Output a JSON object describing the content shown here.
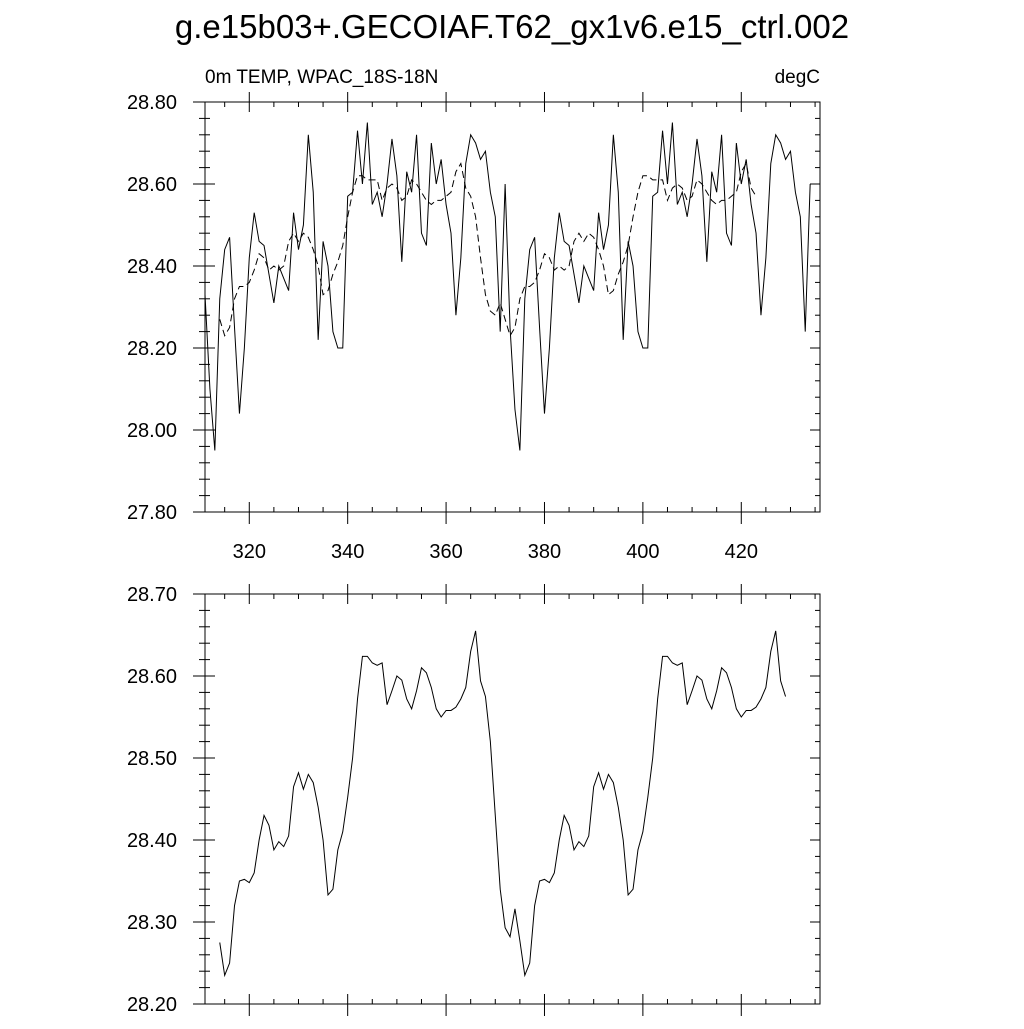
{
  "title": "g.e15b03+.GECOIAF.T62_gx1v6.e15_ctrl.002",
  "chart_data": [
    {
      "type": "line",
      "left_label": "0m TEMP, WPAC_18S-18N",
      "right_label": "degC",
      "xlim": [
        311,
        436
      ],
      "ylim": [
        27.8,
        28.8
      ],
      "x_ticks": [
        320,
        340,
        360,
        380,
        400,
        420
      ],
      "y_ticks": [
        27.8,
        28.0,
        28.2,
        28.4,
        28.6,
        28.8
      ],
      "y_tick_labels": [
        "27.80",
        "28.00",
        "28.20",
        "28.40",
        "28.60",
        "28.80"
      ],
      "x_start": 311,
      "x_step": 1,
      "series": [
        {
          "style": "solid",
          "values": [
            28.33,
            28.1,
            27.95,
            28.32,
            28.44,
            28.47,
            28.25,
            28.04,
            28.2,
            28.42,
            28.53,
            28.46,
            28.45,
            28.38,
            28.31,
            28.4,
            28.37,
            28.34,
            28.53,
            28.44,
            28.5,
            28.72,
            28.58,
            28.22,
            28.46,
            28.4,
            28.24,
            28.2,
            28.2,
            28.57,
            28.58,
            28.73,
            28.6,
            28.75,
            28.55,
            28.58,
            28.52,
            28.6,
            28.71,
            28.62,
            28.41,
            28.63,
            28.58,
            28.72,
            28.48,
            28.45,
            28.7,
            28.6,
            28.66,
            28.55,
            28.48,
            28.28,
            28.42,
            28.65,
            28.72,
            28.7,
            28.66,
            28.68,
            28.58,
            28.52,
            28.24,
            28.6,
            28.25,
            28.05,
            27.95,
            28.32,
            28.44,
            28.47,
            28.25,
            28.04,
            28.2,
            28.42,
            28.53,
            28.46,
            28.45,
            28.38,
            28.31,
            28.4,
            28.37,
            28.34,
            28.53,
            28.44,
            28.5,
            28.72,
            28.58,
            28.22,
            28.46,
            28.4,
            28.24,
            28.2,
            28.2,
            28.57,
            28.58,
            28.73,
            28.6,
            28.75,
            28.55,
            28.58,
            28.52,
            28.6,
            28.71,
            28.62,
            28.41,
            28.63,
            28.58,
            28.72,
            28.48,
            28.45,
            28.7,
            28.6,
            28.66,
            28.55,
            28.48,
            28.28,
            28.42,
            28.65,
            28.72,
            28.7,
            28.66,
            28.68,
            28.58,
            28.52,
            28.24,
            28.6
          ]
        },
        {
          "style": "dashed",
          "values": [
            null,
            null,
            null,
            28.27,
            28.23,
            28.25,
            28.32,
            28.35,
            28.35,
            28.36,
            28.39,
            28.43,
            28.42,
            28.39,
            28.4,
            28.39,
            28.4,
            28.46,
            28.48,
            28.46,
            28.48,
            28.47,
            28.44,
            28.4,
            28.33,
            28.34,
            28.38,
            28.41,
            28.45,
            28.52,
            28.58,
            28.62,
            28.62,
            28.61,
            28.61,
            28.61,
            28.56,
            28.59,
            28.6,
            28.59,
            28.56,
            28.57,
            28.61,
            28.6,
            28.58,
            28.56,
            28.55,
            28.56,
            28.56,
            28.57,
            28.58,
            28.63,
            28.65,
            28.59,
            28.57,
            28.52,
            28.42,
            28.33,
            28.29,
            28.28,
            28.31,
            28.27,
            28.23,
            28.25,
            28.32,
            28.35,
            28.35,
            28.36,
            28.39,
            28.43,
            28.42,
            28.39,
            28.4,
            28.39,
            28.4,
            28.46,
            28.48,
            28.46,
            28.48,
            28.47,
            28.44,
            28.4,
            28.33,
            28.34,
            28.38,
            28.41,
            28.45,
            28.52,
            28.58,
            28.62,
            28.62,
            28.61,
            28.61,
            28.61,
            28.56,
            28.59,
            28.6,
            28.59,
            28.56,
            28.57,
            28.61,
            28.6,
            28.58,
            28.56,
            28.55,
            28.56,
            28.56,
            28.57,
            28.58,
            28.63,
            28.65,
            28.59,
            28.57,
            null,
            null,
            null,
            null,
            null,
            null,
            null,
            null,
            null
          ]
        }
      ]
    },
    {
      "type": "line",
      "xlim": [
        311,
        436
      ],
      "ylim": [
        28.2,
        28.7
      ],
      "x_ticks": [
        320,
        340,
        360,
        380,
        400,
        420
      ],
      "y_ticks": [
        28.2,
        28.3,
        28.4,
        28.5,
        28.6,
        28.7
      ],
      "y_tick_labels": [
        "28.20",
        "28.30",
        "28.40",
        "28.50",
        "28.60",
        "28.70"
      ],
      "x_start": 314,
      "x_step": 1,
      "series": [
        {
          "style": "solid",
          "values": [
            28.275,
            28.235,
            28.25,
            28.32,
            28.35,
            28.352,
            28.348,
            28.36,
            28.4,
            28.43,
            28.418,
            28.388,
            28.398,
            28.392,
            28.405,
            28.465,
            28.482,
            28.462,
            28.48,
            28.47,
            28.44,
            28.4,
            28.333,
            28.34,
            28.388,
            28.41,
            28.452,
            28.5,
            28.572,
            28.624,
            28.624,
            28.616,
            28.613,
            28.616,
            28.565,
            28.582,
            28.6,
            28.595,
            28.572,
            28.56,
            28.582,
            28.61,
            28.604,
            28.586,
            28.56,
            28.55,
            28.558,
            28.558,
            28.562,
            28.572,
            28.586,
            28.63,
            28.655,
            28.594,
            28.575,
            28.52,
            28.43,
            28.34,
            28.293,
            28.282,
            28.316,
            28.277,
            28.235,
            28.25,
            28.32,
            28.35,
            28.352,
            28.348,
            28.36,
            28.4,
            28.43,
            28.418,
            28.388,
            28.398,
            28.392,
            28.405,
            28.465,
            28.482,
            28.462,
            28.48,
            28.47,
            28.44,
            28.4,
            28.333,
            28.34,
            28.388,
            28.41,
            28.452,
            28.5,
            28.572,
            28.624,
            28.624,
            28.616,
            28.613,
            28.616,
            28.565,
            28.582,
            28.6,
            28.595,
            28.572,
            28.56,
            28.582,
            28.61,
            28.604,
            28.586,
            28.56,
            28.55,
            28.558,
            28.558,
            28.562,
            28.572,
            28.586,
            28.63,
            28.655,
            28.594,
            28.575
          ]
        }
      ]
    }
  ]
}
